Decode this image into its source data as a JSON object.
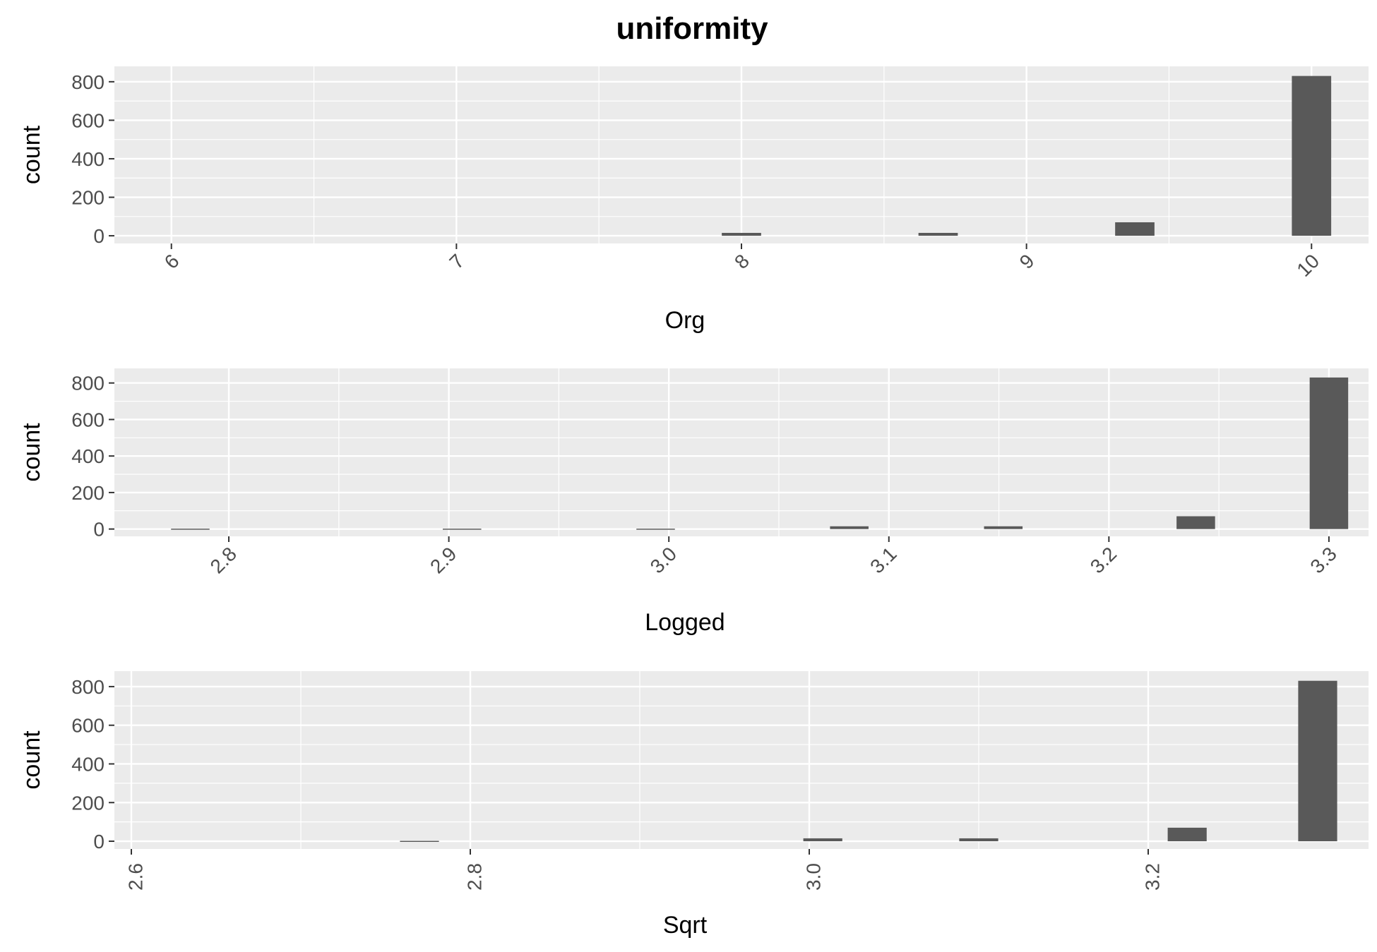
{
  "title": "uniformity",
  "chart_data": [
    {
      "type": "bar",
      "xlabel": "Org",
      "ylabel": "count",
      "xlim": [
        5.8,
        10.2
      ],
      "ylim": [
        -40,
        880
      ],
      "xticks": [
        6,
        7,
        8,
        9,
        10
      ],
      "xtick_labels": [
        "6",
        "7",
        "8",
        "9",
        "10"
      ],
      "yticks": [
        0,
        200,
        400,
        600,
        800
      ],
      "ytick_labels": [
        "0",
        "200",
        "400",
        "600",
        "800"
      ],
      "bin_width": 0.138,
      "bars": [
        {
          "x": 8.0,
          "count": 15
        },
        {
          "x": 8.69,
          "count": 15
        },
        {
          "x": 9.38,
          "count": 70
        },
        {
          "x": 10.0,
          "count": 830
        }
      ],
      "grid": true
    },
    {
      "type": "bar",
      "xlabel": "Logged",
      "ylabel": "count",
      "xlim": [
        2.748,
        3.318
      ],
      "ylim": [
        -40,
        880
      ],
      "xticks": [
        2.8,
        2.9,
        3.0,
        3.1,
        3.2,
        3.3
      ],
      "xtick_labels": [
        "2.8",
        "2.9",
        "3.0",
        "3.1",
        "3.2",
        "3.3"
      ],
      "yticks": [
        0,
        200,
        400,
        600,
        800
      ],
      "ytick_labels": [
        "0",
        "200",
        "400",
        "600",
        "800"
      ],
      "bin_width": 0.0175,
      "bars": [
        {
          "x": 2.7825,
          "count": 2
        },
        {
          "x": 2.906,
          "count": 2
        },
        {
          "x": 2.994,
          "count": 2
        },
        {
          "x": 3.082,
          "count": 15
        },
        {
          "x": 3.152,
          "count": 15
        },
        {
          "x": 3.2395,
          "count": 70
        },
        {
          "x": 3.3,
          "count": 830
        }
      ],
      "grid": true
    },
    {
      "type": "bar",
      "xlabel": "Sqrt",
      "ylabel": "count",
      "xlim": [
        2.59,
        3.33
      ],
      "ylim": [
        -40,
        880
      ],
      "xticks": [
        2.6,
        2.8,
        3.0,
        3.2
      ],
      "xtick_labels": [
        "2.6",
        "2.8",
        "3.0",
        "3.2"
      ],
      "yticks": [
        0,
        200,
        400,
        600,
        800
      ],
      "ytick_labels": [
        "0",
        "200",
        "400",
        "600",
        "800"
      ],
      "bin_width": 0.023,
      "bars": [
        {
          "x": 2.77,
          "count": 2
        },
        {
          "x": 3.008,
          "count": 15
        },
        {
          "x": 3.1,
          "count": 15
        },
        {
          "x": 3.223,
          "count": 70
        },
        {
          "x": 3.3,
          "count": 830
        }
      ],
      "grid": true
    }
  ]
}
